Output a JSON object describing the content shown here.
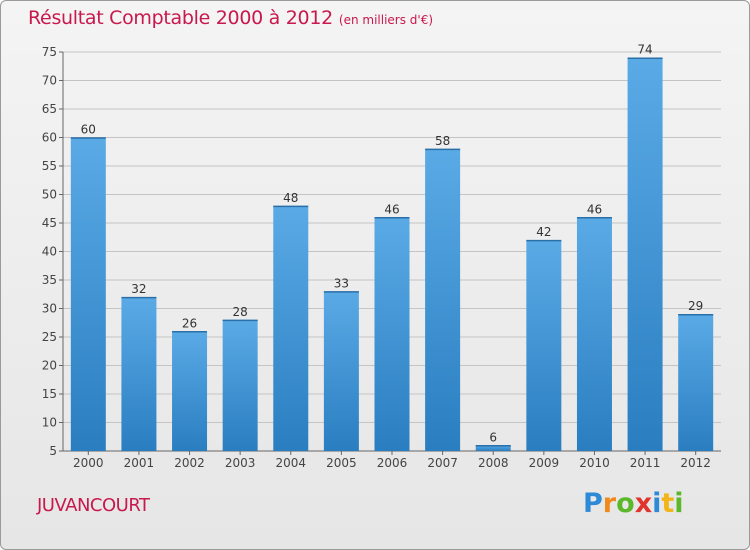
{
  "title": "Résultat Comptable 2000 à 2012",
  "subtitle": "(en milliers d'€)",
  "commune": "JUVANCOURT",
  "logo": {
    "letters": [
      "P",
      "r",
      "o",
      "x",
      "i",
      "t",
      "i"
    ],
    "colors": [
      "#2c8ad6",
      "#f08a1c",
      "#5cb82a",
      "#e0342c",
      "#2c8ad6",
      "#f2b418",
      "#5cb82a"
    ]
  },
  "colors": {
    "title": "#c8184e",
    "bar_top": "#5aaae6",
    "bar_bottom": "#2a7ec0",
    "grid": "#c4c4c4"
  },
  "chart_data": {
    "type": "bar",
    "categories": [
      "2000",
      "2001",
      "2002",
      "2003",
      "2004",
      "2005",
      "2006",
      "2007",
      "2008",
      "2009",
      "2010",
      "2011",
      "2012"
    ],
    "values": [
      60,
      32,
      26,
      28,
      48,
      33,
      46,
      58,
      6,
      42,
      46,
      74,
      29
    ],
    "ylim": [
      5,
      75
    ],
    "yticks": [
      5,
      10,
      15,
      20,
      25,
      30,
      35,
      40,
      45,
      50,
      55,
      60,
      65,
      70,
      75
    ],
    "grid": true
  }
}
